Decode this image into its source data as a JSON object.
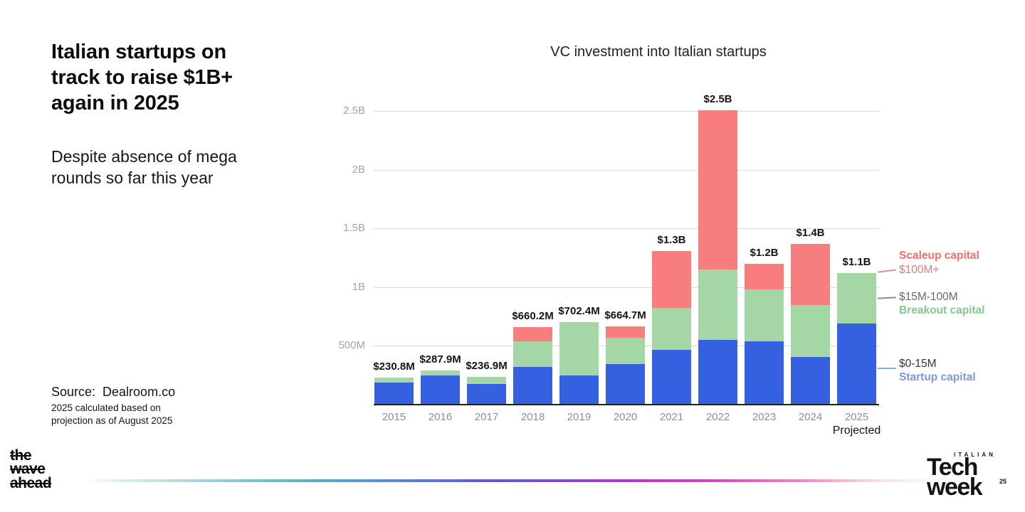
{
  "left_panel": {
    "headline": "Italian startups on\ntrack to raise $1B+\nagain in 2025",
    "subheadline": "Despite absence of mega\nrounds so far this year",
    "source_label": "Source:  Dealroom.co",
    "source_note_line1": "2025 calculated based on",
    "source_note_line2": "projection as of August 2025"
  },
  "chart_data": {
    "type": "bar",
    "stacked": true,
    "title": "VC investment into Italian startups",
    "unit": "USD millions",
    "categories": [
      "2015",
      "2016",
      "2017",
      "2018",
      "2019",
      "2020",
      "2021",
      "2022",
      "2023",
      "2024",
      "2025"
    ],
    "series": [
      {
        "name": "Startup capital",
        "range": "$0-15M",
        "color": "#3560df",
        "values": [
          190,
          250,
          175,
          321,
          250,
          345,
          466,
          552,
          539,
          406,
          691
        ]
      },
      {
        "name": "Breakout capital",
        "range": "$15M-100M",
        "color": "#a5d7a6",
        "values": [
          41,
          38,
          62,
          216,
          452,
          222,
          357,
          600,
          442,
          443,
          430
        ]
      },
      {
        "name": "Scaleup capital",
        "range": "$100M+",
        "color": "#f87d7d",
        "values": [
          0,
          0,
          0,
          123,
          0,
          98,
          485,
          1352,
          218,
          521,
          0
        ]
      }
    ],
    "totals_labels": [
      "$230.8M",
      "$287.9M",
      "$236.9M",
      "$660.2M",
      "$702.4M",
      "$664.7M",
      "$1.3B",
      "$2.5B",
      "$1.2B",
      "$1.4B",
      "$1.1B"
    ],
    "y_ticks": [
      {
        "value": 500,
        "label": "500M"
      },
      {
        "value": 1000,
        "label": "1B"
      },
      {
        "value": 1500,
        "label": "1.5B"
      },
      {
        "value": 2000,
        "label": "2B"
      },
      {
        "value": 2500,
        "label": "2.5B"
      }
    ],
    "ylim": [
      0,
      2600
    ],
    "grid": true,
    "legend_position": "right",
    "x_note": {
      "category": "2025",
      "label": "Projected"
    }
  },
  "legend": {
    "scaleup": {
      "title": "Scaleup capital",
      "range": "$100M+",
      "title_color": "#f26d6d",
      "range_color": "#dd7e7e"
    },
    "breakout": {
      "title": "Breakout capital",
      "range": "$15M-100M",
      "title_color": "#84c98c",
      "range_color": "#5f6e62"
    },
    "startup": {
      "title": "Startup capital",
      "range": "$0-15M",
      "title_color": "#7d96e8",
      "range_color": "#2b3553"
    }
  },
  "footer": {
    "wave_logo_lines": [
      "the",
      "wave",
      "ahead"
    ],
    "itw_logo": {
      "top": "ITALIAN",
      "line1": "Tech",
      "line2": "week",
      "badge": "25"
    }
  }
}
